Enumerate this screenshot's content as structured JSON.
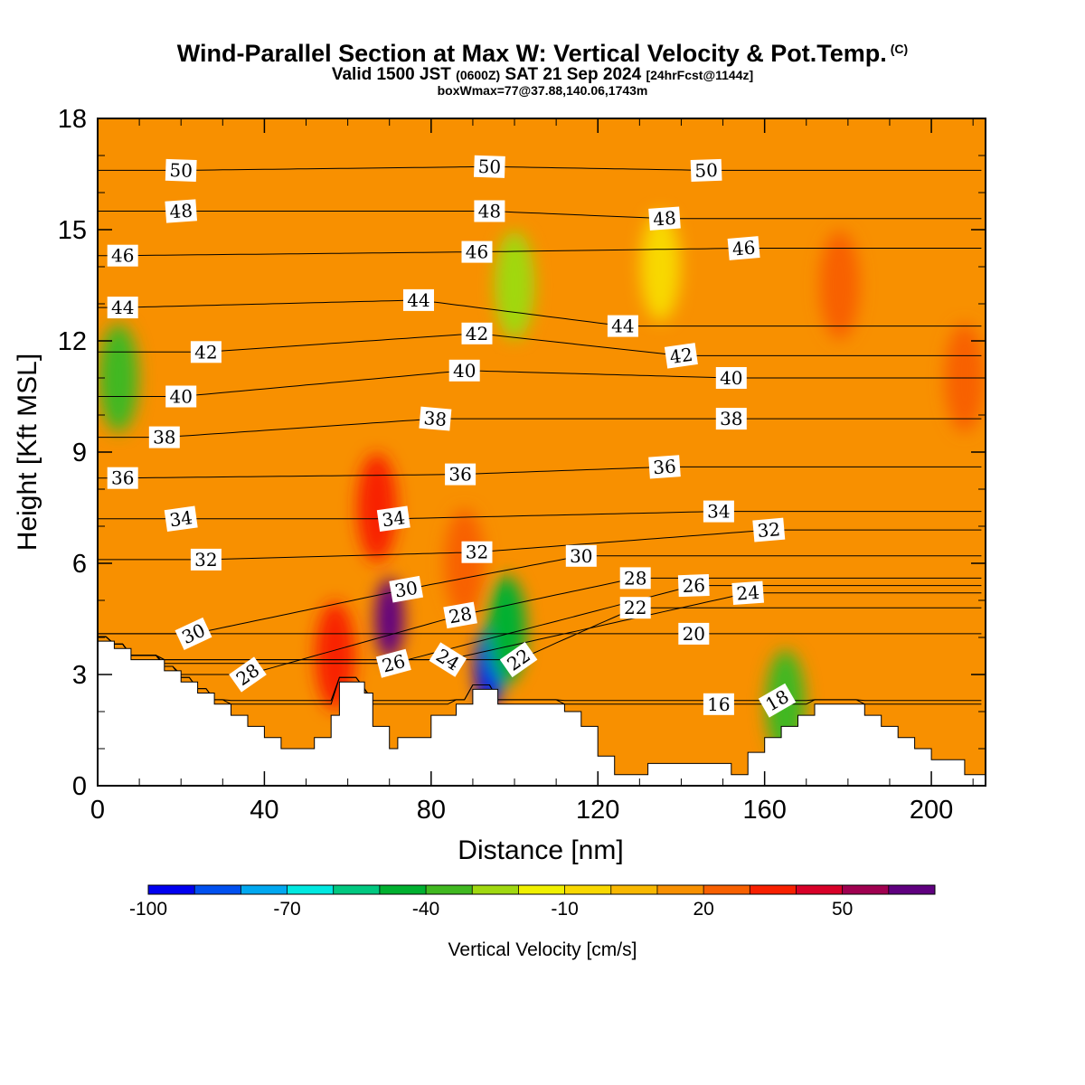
{
  "title": {
    "main": "Wind-Parallel Section at Max W: Vertical Velocity & Pot.Temp.",
    "copyright": "(C)",
    "valid_prefix": "Valid 1500 JST",
    "valid_z": "(0600Z)",
    "valid_date": "SAT 21 Sep 2024",
    "forecast": "[24hrFcst@1144z]",
    "box_info": "boxWmax=77@37.88,140.06,1743m"
  },
  "chart_data": {
    "type": "heatmap",
    "xlabel": "Distance [nm]",
    "ylabel": "Height [Kft MSL]",
    "xlim": [
      0,
      213
    ],
    "ylim": [
      0,
      18
    ],
    "x_ticks": [
      0,
      40,
      80,
      120,
      160,
      200
    ],
    "y_ticks": [
      0,
      3,
      6,
      9,
      12,
      15,
      18
    ],
    "colorbar": {
      "title": "Vertical Velocity [cm/s]",
      "tick_labels": [
        "-100",
        "-70",
        "-40",
        "-10",
        "20",
        "50"
      ],
      "colors": [
        "#0000f0",
        "#0050f0",
        "#00a8f0",
        "#00e8e0",
        "#00c880",
        "#00b030",
        "#40b820",
        "#a0d810",
        "#f0f000",
        "#f8d800",
        "#f8b800",
        "#f89000",
        "#f86000",
        "#f82000",
        "#d80028",
        "#a00050",
        "#600080"
      ]
    },
    "terrain_height_kft": [
      [
        0,
        3.9
      ],
      [
        4,
        3.9
      ],
      [
        4,
        3.7
      ],
      [
        8,
        3.7
      ],
      [
        8,
        3.4
      ],
      [
        16,
        3.4
      ],
      [
        16,
        3.1
      ],
      [
        20,
        3.1
      ],
      [
        20,
        2.8
      ],
      [
        24,
        2.8
      ],
      [
        24,
        2.5
      ],
      [
        28,
        2.5
      ],
      [
        28,
        2.2
      ],
      [
        32,
        2.2
      ],
      [
        32,
        1.9
      ],
      [
        36,
        1.9
      ],
      [
        36,
        1.6
      ],
      [
        40,
        1.6
      ],
      [
        40,
        1.3
      ],
      [
        44,
        1.3
      ],
      [
        44,
        1.0
      ],
      [
        52,
        1.0
      ],
      [
        52,
        1.3
      ],
      [
        56,
        1.3
      ],
      [
        56,
        1.9
      ],
      [
        58,
        1.9
      ],
      [
        58,
        2.8
      ],
      [
        64,
        2.8
      ],
      [
        64,
        2.5
      ],
      [
        66,
        2.5
      ],
      [
        66,
        1.6
      ],
      [
        70,
        1.6
      ],
      [
        70,
        1.0
      ],
      [
        72,
        1.0
      ],
      [
        72,
        1.3
      ],
      [
        80,
        1.3
      ],
      [
        80,
        1.9
      ],
      [
        86,
        1.9
      ],
      [
        86,
        2.2
      ],
      [
        90,
        2.2
      ],
      [
        90,
        2.6
      ],
      [
        96,
        2.6
      ],
      [
        96,
        2.2
      ],
      [
        112,
        2.2
      ],
      [
        112,
        2.0
      ],
      [
        116,
        2.0
      ],
      [
        116,
        1.6
      ],
      [
        120,
        1.6
      ],
      [
        120,
        0.8
      ],
      [
        124,
        0.8
      ],
      [
        124,
        0.3
      ],
      [
        132,
        0.3
      ],
      [
        132,
        0.6
      ],
      [
        152,
        0.6
      ],
      [
        152,
        0.3
      ],
      [
        156,
        0.3
      ],
      [
        156,
        0.9
      ],
      [
        160,
        0.9
      ],
      [
        160,
        1.3
      ],
      [
        164,
        1.3
      ],
      [
        164,
        1.6
      ],
      [
        168,
        1.6
      ],
      [
        168,
        1.9
      ],
      [
        172,
        1.9
      ],
      [
        172,
        2.2
      ],
      [
        184,
        2.2
      ],
      [
        184,
        1.9
      ],
      [
        188,
        1.9
      ],
      [
        188,
        1.6
      ],
      [
        192,
        1.6
      ],
      [
        192,
        1.3
      ],
      [
        196,
        1.3
      ],
      [
        196,
        1.0
      ],
      [
        200,
        1.0
      ],
      [
        200,
        0.7
      ],
      [
        208,
        0.7
      ],
      [
        208,
        0.3
      ],
      [
        213,
        0.3
      ]
    ],
    "vertical_velocity_features": [
      {
        "x_nm": 70,
        "height_kft": 4.5,
        "cm_s": 70
      },
      {
        "x_nm": 67,
        "height_kft": 7.5,
        "cm_s": 35
      },
      {
        "x_nm": 88,
        "height_kft": 6.0,
        "cm_s": 25
      },
      {
        "x_nm": 57,
        "height_kft": 3.5,
        "cm_s": 35
      },
      {
        "x_nm": 94,
        "height_kft": 3.2,
        "cm_s": -95
      },
      {
        "x_nm": 98,
        "height_kft": 4.2,
        "cm_s": -45
      },
      {
        "x_nm": 5,
        "height_kft": 11.0,
        "cm_s": -35
      },
      {
        "x_nm": 100,
        "height_kft": 13.5,
        "cm_s": -30
      },
      {
        "x_nm": 135,
        "height_kft": 14.0,
        "cm_s": -10
      },
      {
        "x_nm": 208,
        "height_kft": 11.0,
        "cm_s": 25
      },
      {
        "x_nm": 178,
        "height_kft": 13.5,
        "cm_s": 20
      },
      {
        "x_nm": 165,
        "height_kft": 2.2,
        "cm_s": -35
      }
    ],
    "theta_contour_labels": [
      {
        "text": "50",
        "x_nm": 20,
        "height_kft": 16.6,
        "angle": 2
      },
      {
        "text": "50",
        "x_nm": 94,
        "height_kft": 16.7,
        "angle": 2
      },
      {
        "text": "50",
        "x_nm": 146,
        "height_kft": 16.6,
        "angle": -2
      },
      {
        "text": "48",
        "x_nm": 20,
        "height_kft": 15.5,
        "angle": -4
      },
      {
        "text": "48",
        "x_nm": 94,
        "height_kft": 15.5,
        "angle": 0
      },
      {
        "text": "48",
        "x_nm": 136,
        "height_kft": 15.3,
        "angle": -4
      },
      {
        "text": "46",
        "x_nm": 6,
        "height_kft": 14.3,
        "angle": 0
      },
      {
        "text": "46",
        "x_nm": 91,
        "height_kft": 14.4,
        "angle": 0
      },
      {
        "text": "46",
        "x_nm": 155,
        "height_kft": 14.5,
        "angle": -5
      },
      {
        "text": "44",
        "x_nm": 6,
        "height_kft": 12.9,
        "angle": 0
      },
      {
        "text": "44",
        "x_nm": 77,
        "height_kft": 13.1,
        "angle": 0
      },
      {
        "text": "44",
        "x_nm": 126,
        "height_kft": 12.4,
        "angle": 0
      },
      {
        "text": "42",
        "x_nm": 26,
        "height_kft": 11.7,
        "angle": 0
      },
      {
        "text": "42",
        "x_nm": 91,
        "height_kft": 12.2,
        "angle": 0
      },
      {
        "text": "42",
        "x_nm": 140,
        "height_kft": 11.6,
        "angle": -8
      },
      {
        "text": "40",
        "x_nm": 20,
        "height_kft": 10.5,
        "angle": 0
      },
      {
        "text": "40",
        "x_nm": 88,
        "height_kft": 11.2,
        "angle": 0
      },
      {
        "text": "40",
        "x_nm": 152,
        "height_kft": 11.0,
        "angle": 0
      },
      {
        "text": "38",
        "x_nm": 16,
        "height_kft": 9.4,
        "angle": 0
      },
      {
        "text": "38",
        "x_nm": 81,
        "height_kft": 9.9,
        "angle": 5
      },
      {
        "text": "38",
        "x_nm": 152,
        "height_kft": 9.9,
        "angle": 0
      },
      {
        "text": "36",
        "x_nm": 6,
        "height_kft": 8.3,
        "angle": 0
      },
      {
        "text": "36",
        "x_nm": 87,
        "height_kft": 8.4,
        "angle": 0
      },
      {
        "text": "36",
        "x_nm": 136,
        "height_kft": 8.6,
        "angle": -4
      },
      {
        "text": "34",
        "x_nm": 20,
        "height_kft": 7.2,
        "angle": -8
      },
      {
        "text": "34",
        "x_nm": 71,
        "height_kft": 7.2,
        "angle": -8
      },
      {
        "text": "34",
        "x_nm": 149,
        "height_kft": 7.4,
        "angle": 0
      },
      {
        "text": "32",
        "x_nm": 26,
        "height_kft": 6.1,
        "angle": 0
      },
      {
        "text": "32",
        "x_nm": 91,
        "height_kft": 6.3,
        "angle": 0
      },
      {
        "text": "32",
        "x_nm": 161,
        "height_kft": 6.9,
        "angle": -5
      },
      {
        "text": "30",
        "x_nm": 23,
        "height_kft": 4.1,
        "angle": -25
      },
      {
        "text": "30",
        "x_nm": 74,
        "height_kft": 5.3,
        "angle": -10
      },
      {
        "text": "30",
        "x_nm": 116,
        "height_kft": 6.2,
        "angle": 0
      },
      {
        "text": "28",
        "x_nm": 36,
        "height_kft": 3.0,
        "angle": -35
      },
      {
        "text": "28",
        "x_nm": 87,
        "height_kft": 4.6,
        "angle": -10
      },
      {
        "text": "28",
        "x_nm": 129,
        "height_kft": 5.6,
        "angle": 0
      },
      {
        "text": "26",
        "x_nm": 71,
        "height_kft": 3.3,
        "angle": -15
      },
      {
        "text": "26",
        "x_nm": 143,
        "height_kft": 5.4,
        "angle": -2
      },
      {
        "text": "24",
        "x_nm": 84,
        "height_kft": 3.4,
        "angle": 32
      },
      {
        "text": "24",
        "x_nm": 156,
        "height_kft": 5.2,
        "angle": -4
      },
      {
        "text": "22",
        "x_nm": 101,
        "height_kft": 3.4,
        "angle": -35
      },
      {
        "text": "22",
        "x_nm": 129,
        "height_kft": 4.8,
        "angle": 0
      },
      {
        "text": "20",
        "x_nm": 143,
        "height_kft": 4.1,
        "angle": 0
      },
      {
        "text": "18",
        "x_nm": 163,
        "height_kft": 2.3,
        "angle": -30
      },
      {
        "text": "16",
        "x_nm": 149,
        "height_kft": 2.2,
        "angle": 0
      }
    ]
  }
}
